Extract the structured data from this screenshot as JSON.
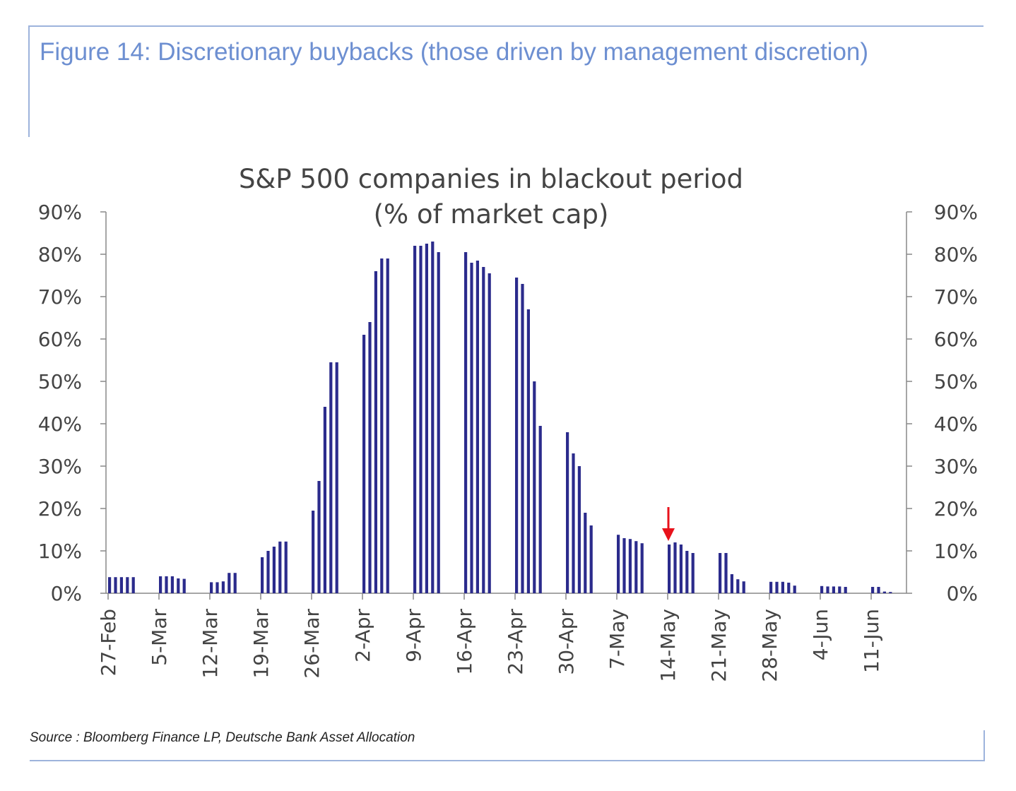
{
  "figure": {
    "title": "Figure 14: Discretionary buybacks (those driven by management discretion)",
    "source": "Source : Bloomberg Finance LP, Deutsche Bank Asset Allocation"
  },
  "colors": {
    "bar": "#2b2b8c",
    "axis": "#888888",
    "frame": "#9db3dc",
    "arrow": "#e8121b"
  },
  "chart_data": {
    "type": "bar",
    "title": "S&P 500 companies in blackout period",
    "subtitle": "(% of market cap)",
    "ylim": [
      0,
      90
    ],
    "yticks": [
      "0%",
      "10%",
      "20%",
      "30%",
      "40%",
      "50%",
      "60%",
      "70%",
      "80%",
      "90%"
    ],
    "xlabels": [
      "27-Feb",
      "5-Mar",
      "12-Mar",
      "19-Mar",
      "26-Mar",
      "2-Apr",
      "9-Apr",
      "16-Apr",
      "23-Apr",
      "30-Apr",
      "7-May",
      "14-May",
      "21-May",
      "28-May",
      "4-Jun",
      "11-Jun"
    ],
    "grid": false,
    "legend": "none",
    "annotation": {
      "type": "arrow",
      "week": "14-May",
      "value": 12
    },
    "weeks": [
      {
        "label": "27-Feb",
        "values": [
          3.8,
          3.8,
          3.8,
          3.8,
          3.8
        ]
      },
      {
        "label": "5-Mar",
        "values": [
          4.0,
          4.0,
          4.0,
          3.5,
          3.4
        ]
      },
      {
        "label": "12-Mar",
        "values": [
          2.6,
          2.6,
          2.8,
          4.8,
          4.8
        ]
      },
      {
        "label": "19-Mar",
        "values": [
          8.5,
          10.0,
          11.0,
          12.2,
          12.2
        ]
      },
      {
        "label": "26-Mar",
        "values": [
          19.5,
          26.5,
          44.0,
          54.5,
          54.5
        ]
      },
      {
        "label": "2-Apr",
        "values": [
          61.0,
          64.0,
          76.0,
          79.0,
          79.0
        ]
      },
      {
        "label": "9-Apr",
        "values": [
          82.0,
          82.0,
          82.5,
          83.0,
          80.5
        ]
      },
      {
        "label": "16-Apr",
        "values": [
          80.5,
          78.0,
          78.5,
          77.0,
          75.5
        ]
      },
      {
        "label": "23-Apr",
        "values": [
          74.5,
          73.0,
          67.0,
          50.0,
          39.5
        ]
      },
      {
        "label": "30-Apr",
        "values": [
          38.0,
          33.0,
          30.0,
          19.0,
          16.0
        ]
      },
      {
        "label": "7-May",
        "values": [
          13.8,
          13.0,
          12.8,
          12.3,
          11.8
        ]
      },
      {
        "label": "14-May",
        "values": [
          11.5,
          12.0,
          11.5,
          10.0,
          9.5
        ]
      },
      {
        "label": "21-May",
        "values": [
          9.5,
          9.5,
          4.5,
          3.3,
          2.8
        ]
      },
      {
        "label": "28-May",
        "values": [
          2.7,
          2.7,
          2.7,
          2.5,
          1.8
        ]
      },
      {
        "label": "4-Jun",
        "values": [
          1.7,
          1.6,
          1.6,
          1.6,
          1.5
        ]
      },
      {
        "label": "11-Jun",
        "values": [
          1.5,
          1.5,
          0.4,
          0.3
        ]
      }
    ]
  }
}
